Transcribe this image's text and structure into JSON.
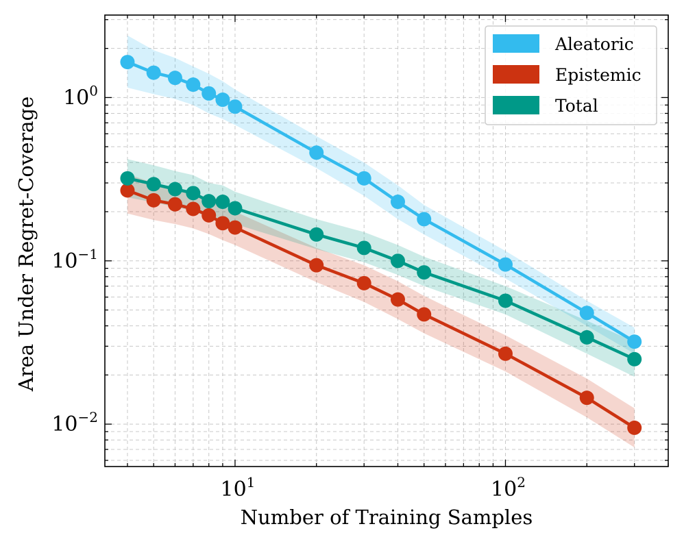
{
  "chart_data": {
    "type": "line",
    "xscale": "log",
    "yscale": "log",
    "xlabel": "Number of Training Samples",
    "ylabel": "Area Under Regret-Coverage",
    "xlim": [
      3.3,
      400
    ],
    "ylim": [
      0.0055,
      3.2
    ],
    "x_tick_labels": [
      {
        "value": 10,
        "base": "10",
        "exp": "1"
      },
      {
        "value": 100,
        "base": "10",
        "exp": "2"
      }
    ],
    "y_tick_labels": [
      {
        "value": 1,
        "base": "10",
        "exp": "0"
      },
      {
        "value": 0.1,
        "base": "10",
        "exp": "−1"
      },
      {
        "value": 0.01,
        "base": "10",
        "exp": "−2"
      }
    ],
    "grid": true,
    "legend_position": "top-right",
    "x": [
      4,
      5,
      6,
      7,
      8,
      9,
      10,
      20,
      30,
      40,
      50,
      100,
      200,
      300
    ],
    "series": [
      {
        "name": "Aleatoric",
        "color": "#33bbee",
        "values": [
          1.65,
          1.42,
          1.32,
          1.2,
          1.06,
          0.97,
          0.88,
          0.46,
          0.32,
          0.23,
          0.18,
          0.095,
          0.048,
          0.032
        ],
        "band_low": [
          1.15,
          1.05,
          0.98,
          0.9,
          0.8,
          0.74,
          0.68,
          0.37,
          0.25,
          0.18,
          0.145,
          0.078,
          0.04,
          0.027
        ],
        "band_high": [
          2.4,
          1.95,
          1.75,
          1.55,
          1.4,
          1.26,
          1.12,
          0.58,
          0.4,
          0.29,
          0.22,
          0.115,
          0.057,
          0.039
        ]
      },
      {
        "name": "Epistemic",
        "color": "#cc3311",
        "values": [
          0.27,
          0.235,
          0.222,
          0.208,
          0.19,
          0.17,
          0.16,
          0.094,
          0.073,
          0.058,
          0.047,
          0.027,
          0.0145,
          0.0095
        ],
        "band_low": [
          0.195,
          0.178,
          0.168,
          0.158,
          0.146,
          0.134,
          0.125,
          0.074,
          0.056,
          0.044,
          0.036,
          0.021,
          0.011,
          0.0072
        ],
        "band_high": [
          0.34,
          0.3,
          0.28,
          0.26,
          0.24,
          0.215,
          0.2,
          0.12,
          0.094,
          0.075,
          0.061,
          0.035,
          0.019,
          0.0125
        ]
      },
      {
        "name": "Total",
        "color": "#009988",
        "values": [
          0.32,
          0.295,
          0.275,
          0.26,
          0.232,
          0.23,
          0.21,
          0.145,
          0.12,
          0.1,
          0.085,
          0.057,
          0.034,
          0.025
        ],
        "band_low": [
          0.245,
          0.228,
          0.214,
          0.202,
          0.184,
          0.182,
          0.168,
          0.118,
          0.098,
          0.082,
          0.07,
          0.047,
          0.027,
          0.0195
        ],
        "band_high": [
          0.42,
          0.385,
          0.355,
          0.335,
          0.3,
          0.29,
          0.265,
          0.18,
          0.15,
          0.125,
          0.106,
          0.07,
          0.043,
          0.032
        ]
      }
    ]
  }
}
